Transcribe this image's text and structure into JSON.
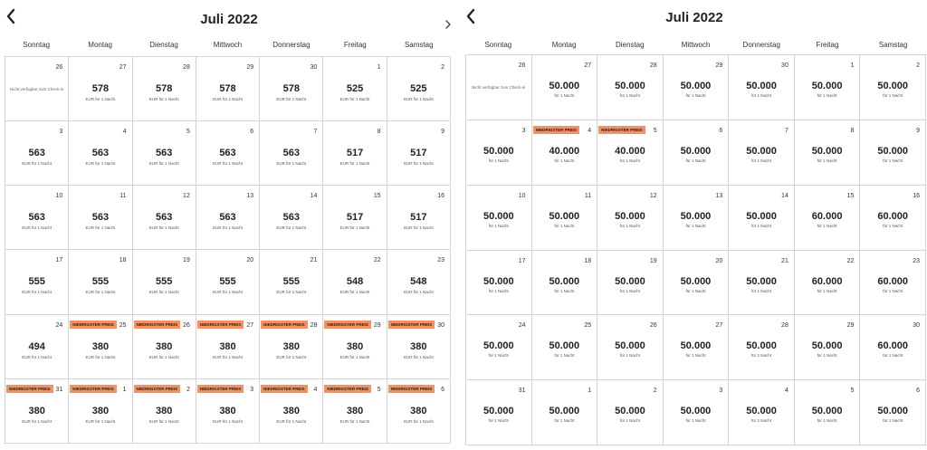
{
  "panels": [
    {
      "title": "Juli 2022",
      "weekdays": [
        "Sonntag",
        "Montag",
        "Dienstag",
        "Mittwoch",
        "Donnerstag",
        "Freitag",
        "Samstag"
      ],
      "unit_text": "EUR für 1 Nacht",
      "unavailable_text": "Nicht verfügbar zum Check-in",
      "badge_text": "NIEDRIGSTER PREIS",
      "cells": [
        {
          "day": "26",
          "price": "",
          "badge": false
        },
        {
          "day": "27",
          "price": "578",
          "badge": false
        },
        {
          "day": "28",
          "price": "578",
          "badge": false
        },
        {
          "day": "29",
          "price": "578",
          "badge": false
        },
        {
          "day": "30",
          "price": "578",
          "badge": false
        },
        {
          "day": "1",
          "price": "525",
          "badge": false
        },
        {
          "day": "2",
          "price": "525",
          "badge": false
        },
        {
          "day": "3",
          "price": "563",
          "badge": false
        },
        {
          "day": "4",
          "price": "563",
          "badge": false
        },
        {
          "day": "5",
          "price": "563",
          "badge": false
        },
        {
          "day": "6",
          "price": "563",
          "badge": false
        },
        {
          "day": "7",
          "price": "563",
          "badge": false
        },
        {
          "day": "8",
          "price": "517",
          "badge": false
        },
        {
          "day": "9",
          "price": "517",
          "badge": false
        },
        {
          "day": "10",
          "price": "563",
          "badge": false
        },
        {
          "day": "11",
          "price": "563",
          "badge": false
        },
        {
          "day": "12",
          "price": "563",
          "badge": false
        },
        {
          "day": "13",
          "price": "563",
          "badge": false
        },
        {
          "day": "14",
          "price": "563",
          "badge": false
        },
        {
          "day": "15",
          "price": "517",
          "badge": false
        },
        {
          "day": "16",
          "price": "517",
          "badge": false
        },
        {
          "day": "17",
          "price": "555",
          "badge": false
        },
        {
          "day": "18",
          "price": "555",
          "badge": false
        },
        {
          "day": "19",
          "price": "555",
          "badge": false
        },
        {
          "day": "20",
          "price": "555",
          "badge": false
        },
        {
          "day": "21",
          "price": "555",
          "badge": false
        },
        {
          "day": "22",
          "price": "548",
          "badge": false
        },
        {
          "day": "23",
          "price": "548",
          "badge": false
        },
        {
          "day": "24",
          "price": "494",
          "badge": false
        },
        {
          "day": "25",
          "price": "380",
          "badge": true
        },
        {
          "day": "26",
          "price": "380",
          "badge": true
        },
        {
          "day": "27",
          "price": "380",
          "badge": true
        },
        {
          "day": "28",
          "price": "380",
          "badge": true
        },
        {
          "day": "29",
          "price": "380",
          "badge": true
        },
        {
          "day": "30",
          "price": "380",
          "badge": true
        },
        {
          "day": "31",
          "price": "380",
          "badge": true
        },
        {
          "day": "1",
          "price": "380",
          "badge": true
        },
        {
          "day": "2",
          "price": "380",
          "badge": true
        },
        {
          "day": "3",
          "price": "380",
          "badge": true
        },
        {
          "day": "4",
          "price": "380",
          "badge": true
        },
        {
          "day": "5",
          "price": "380",
          "badge": true
        },
        {
          "day": "6",
          "price": "380",
          "badge": true
        }
      ]
    },
    {
      "title": "Juli 2022",
      "weekdays": [
        "Sonntag",
        "Montag",
        "Dienstag",
        "Mittwoch",
        "Donnerstag",
        "Freitag",
        "Samstag"
      ],
      "unit_text": "für 1 Nacht",
      "unavailable_text": "Nicht verfügbar zum Check-in",
      "badge_text": "NIEDRIGSTER PREIS",
      "cells": [
        {
          "day": "26",
          "price": "",
          "badge": false
        },
        {
          "day": "27",
          "price": "50.000",
          "badge": false
        },
        {
          "day": "28",
          "price": "50.000",
          "badge": false
        },
        {
          "day": "29",
          "price": "50.000",
          "badge": false
        },
        {
          "day": "30",
          "price": "50.000",
          "badge": false
        },
        {
          "day": "1",
          "price": "50.000",
          "badge": false
        },
        {
          "day": "2",
          "price": "50.000",
          "badge": false
        },
        {
          "day": "3",
          "price": "50.000",
          "badge": false
        },
        {
          "day": "4",
          "price": "40.000",
          "badge": true
        },
        {
          "day": "5",
          "price": "40.000",
          "badge": true
        },
        {
          "day": "6",
          "price": "50.000",
          "badge": false
        },
        {
          "day": "7",
          "price": "50.000",
          "badge": false
        },
        {
          "day": "8",
          "price": "50.000",
          "badge": false
        },
        {
          "day": "9",
          "price": "50.000",
          "badge": false
        },
        {
          "day": "10",
          "price": "50.000",
          "badge": false
        },
        {
          "day": "11",
          "price": "50.000",
          "badge": false
        },
        {
          "day": "12",
          "price": "50.000",
          "badge": false
        },
        {
          "day": "13",
          "price": "50.000",
          "badge": false
        },
        {
          "day": "14",
          "price": "50.000",
          "badge": false
        },
        {
          "day": "15",
          "price": "60.000",
          "badge": false
        },
        {
          "day": "16",
          "price": "60.000",
          "badge": false
        },
        {
          "day": "17",
          "price": "50.000",
          "badge": false
        },
        {
          "day": "18",
          "price": "50.000",
          "badge": false
        },
        {
          "day": "19",
          "price": "50.000",
          "badge": false
        },
        {
          "day": "20",
          "price": "50.000",
          "badge": false
        },
        {
          "day": "21",
          "price": "50.000",
          "badge": false
        },
        {
          "day": "22",
          "price": "60.000",
          "badge": false
        },
        {
          "day": "23",
          "price": "60.000",
          "badge": false
        },
        {
          "day": "24",
          "price": "50.000",
          "badge": false
        },
        {
          "day": "25",
          "price": "50.000",
          "badge": false
        },
        {
          "day": "26",
          "price": "50.000",
          "badge": false
        },
        {
          "day": "27",
          "price": "50.000",
          "badge": false
        },
        {
          "day": "28",
          "price": "50.000",
          "badge": false
        },
        {
          "day": "29",
          "price": "50.000",
          "badge": false
        },
        {
          "day": "30",
          "price": "60.000",
          "badge": false
        },
        {
          "day": "31",
          "price": "50.000",
          "badge": false
        },
        {
          "day": "1",
          "price": "50.000",
          "badge": false
        },
        {
          "day": "2",
          "price": "50.000",
          "badge": false
        },
        {
          "day": "3",
          "price": "50.000",
          "badge": false
        },
        {
          "day": "4",
          "price": "50.000",
          "badge": false
        },
        {
          "day": "5",
          "price": "50.000",
          "badge": false
        },
        {
          "day": "6",
          "price": "50.000",
          "badge": false
        }
      ]
    }
  ],
  "colors": {
    "badge_bg": "#f29163",
    "grid_line": "#d4d4d4",
    "text": "#222222"
  },
  "icons": {
    "prev": "chevron-left-icon",
    "next": "chevron-right-icon"
  }
}
